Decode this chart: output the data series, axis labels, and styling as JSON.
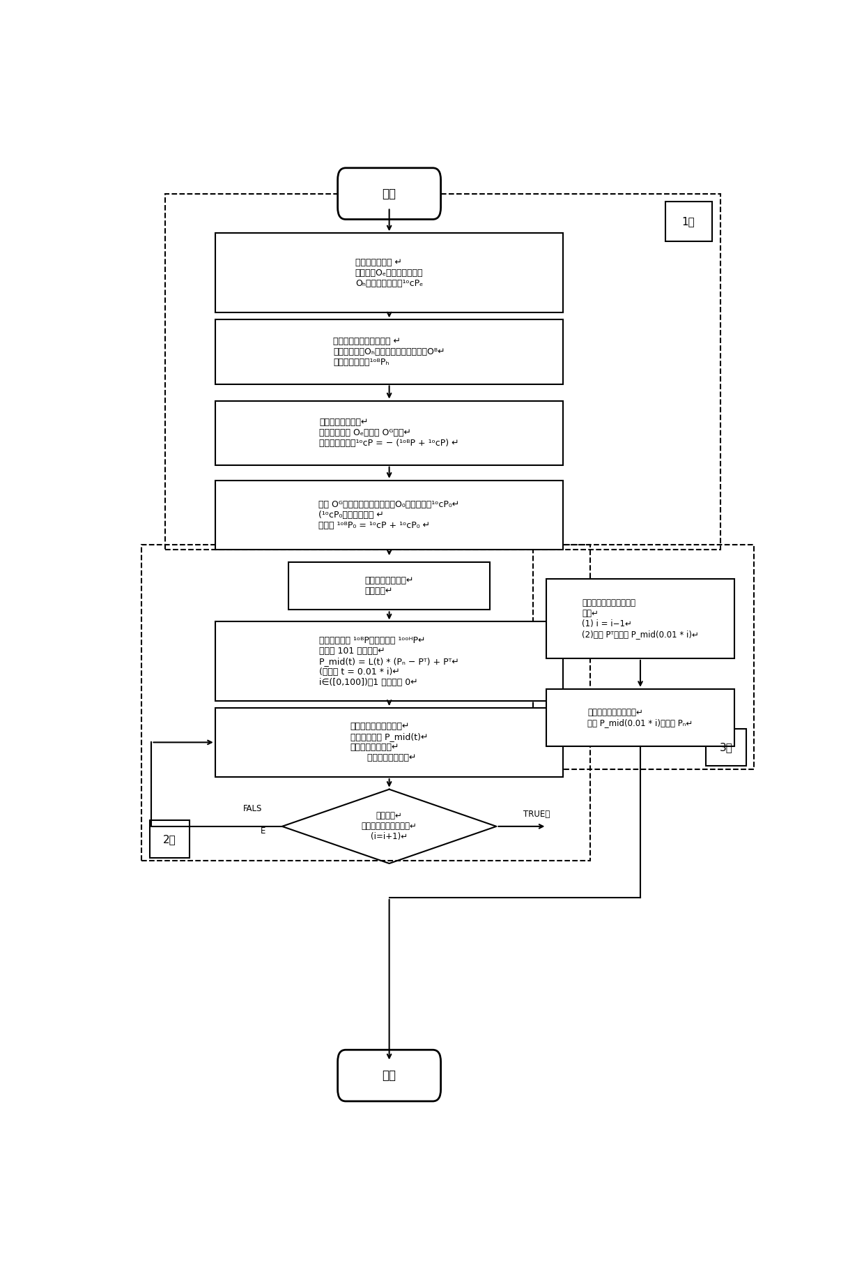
{
  "fig_width": 12.4,
  "fig_height": 18.41,
  "bg_color": "#ffffff",
  "start_text": "开始",
  "end_text": "结束",
  "sec1_label": "1。",
  "sec2_label": "2。",
  "sec3_label": "3。",
  "box1_lines": [
    "影像设备确定： ↵",
    "肿瘾坐标Oₑ与病患头顶坐标",
    "Oₕ得到：相对位置¹ᵒcPₑ"
  ],
  "box2_lines": [
    "治疗床颖板传感器确定： ↵",
    "病患头顶坐标Oₕ与治疗床颖板固定坐标Oᴮ↵",
    "得到：相对位置¹ᵒᴮPₕ"
  ],
  "box3_lines": [
    "肿瘾抗达靶区中央↵",
    "肿瘾所在位置 Oₑ与靶区 Oᴳ重合↵",
    "得到：相对位置¹ᵒcP = − (¹ᵒᴮP + ¹ᵒcP) ↵"
  ],
  "box4_lines": [
    "靶区 Oᴳ中央与五轴治疗床基座O₀的相对位置¹ᵒcP₀↵",
    "(¹ᵒcP₀为固定参数） ↵",
    "得到： ¹ᵒᴮP = ¹ᵒcP + ¹ᵒcP₀ ↵"
  ],
  "box5_lines": [
    "确定目标运动路径↵",
    "直线运动↵"
  ],
  "box6_lines": [
    "已知目标状态 ¹ᵒᴮP与起始状态 ¹ᵒ⁰ᴴP↵",
    "得到： 101 个中间点↵",
    "P_mid(t) = L(t) * (Pₙ − Pᵀ) + Pᵀ↵",
    "(其中： t = 0.01 * i)↵",
    "i∈([0,100])，1 初始値为 0↵"
  ],
  "box7_lines": [
    "治疗床运动学逆解算法↵",
    "输入目标状态 P_mid(t)↵",
    "得到：各关节角度↵",
    "      解存在性判定条件↵"
  ],
  "diamond_lines": [
    "逆解存在↵",
    "（解存在性判定条件）↵",
    "(i=i+1)↵"
  ],
  "box8_lines": [
    "五次多项式插居轨迹规划↵",
    "算法↵",
    "(1) i = i−1↵",
    "(2)起始 Pᵀ，终止 P_mid(0.01 * i)↵"
  ],
  "box9_lines": [
    "直线运动轨迹规划算法↵",
    "起始 P_mid(0.01 * i)，终止 Pₙ↵"
  ],
  "fals_label": "FALS\nE",
  "true_label": "TRUE。"
}
